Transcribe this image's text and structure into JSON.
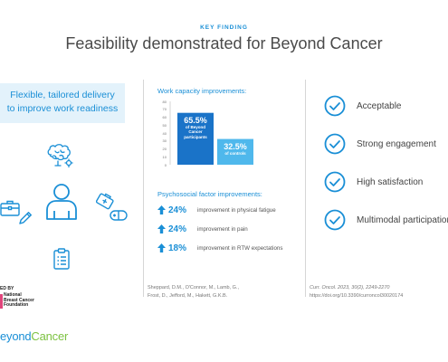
{
  "header": {
    "kicker": "KEY FINDING",
    "title": "Feasibility demonstrated for Beyond Cancer"
  },
  "left": {
    "delivery_line1": "Flexible, tailored delivery",
    "delivery_line2": "to improve work readiness",
    "icons": [
      "brain-icon",
      "briefcase-icon",
      "pen-icon",
      "person-icon",
      "medical-bag-icon",
      "pill-icon",
      "clipboard-icon"
    ],
    "funded_by": "ED BY",
    "funder_line1": "National",
    "funder_line2": "Breast Cancer",
    "funder_line3": "Foundation",
    "brand_part1": "eyond",
    "brand_part2": "Cancer"
  },
  "middle": {
    "work_heading": "Work capacity improvements:",
    "psy_heading": "Psychosocial factor improvements:",
    "psychosocial": [
      {
        "pct": "24%",
        "desc": "improvement in physical fatigue"
      },
      {
        "pct": "24%",
        "desc": "improvement in pain"
      },
      {
        "pct": "18%",
        "desc": "improvement in RTW expectations"
      }
    ],
    "ref_line1": "Sheppard, D.M., O'Connor, M., Lamb, G.,",
    "ref_line2": "Frost, D., Jefford, M., Hakett, G.K.B."
  },
  "chart_data": {
    "type": "bar",
    "categories": [
      "Beyond Cancer participants",
      "controls"
    ],
    "values": [
      65.5,
      32.5
    ],
    "ylim": [
      0,
      80
    ],
    "yticks": [
      "80",
      "70",
      "60",
      "50",
      "40",
      "30",
      "20",
      "10",
      "0"
    ],
    "bar_labels": [
      {
        "pct": "65.5%",
        "line1": "of Beyond",
        "line2": "Cancer",
        "line3": "participants"
      },
      {
        "pct": "32.5%",
        "line1": "of controls",
        "line2": "",
        "line3": ""
      }
    ],
    "colors": [
      "#1a73c8",
      "#4fb8ec"
    ],
    "grid": false
  },
  "right": {
    "outcomes": [
      "Acceptable",
      "Strong engagement",
      "High satisfaction",
      "Multimodal participation"
    ],
    "citation_journal": "Curr. Oncol. 2023, 30(2), 2249-2270",
    "citation_doi": "https://doi.org/10.3390/curroncol30020174"
  },
  "colors": {
    "accent_blue": "#1a8fd6",
    "brand_green": "#7dc242",
    "light_blue_bg": "#e3f2fb"
  }
}
